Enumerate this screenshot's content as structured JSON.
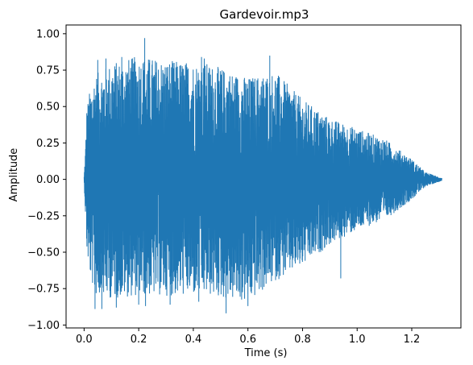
{
  "chart_data": {
    "type": "line",
    "title": "Gardevoir.mp3",
    "xlabel": "Time (s)",
    "ylabel": "Amplitude",
    "xlim": [
      -0.066,
      1.38
    ],
    "ylim": [
      -1.02,
      1.06
    ],
    "xticks": [
      0.0,
      0.2,
      0.4,
      0.6,
      0.8,
      1.0,
      1.2
    ],
    "xtick_labels": [
      "0.0",
      "0.2",
      "0.4",
      "0.6",
      "0.8",
      "1.0",
      "1.2"
    ],
    "yticks": [
      -1.0,
      -0.75,
      -0.5,
      -0.25,
      0.0,
      0.25,
      0.5,
      0.75,
      1.0
    ],
    "ytick_labels": [
      "−1.00",
      "−0.75",
      "−0.50",
      "−0.25",
      "0.00",
      "0.25",
      "0.50",
      "0.75",
      "1.00"
    ],
    "grid": false,
    "series": [
      {
        "color": "#1f77b4",
        "duration": 1.31,
        "envelope": {
          "t": [
            0.0,
            0.005,
            0.01,
            0.02,
            0.04,
            0.1,
            0.2,
            0.3,
            0.45,
            0.6,
            0.7,
            0.8,
            0.9,
            1.0,
            1.1,
            1.2,
            1.25,
            1.31
          ],
          "max": [
            0.02,
            0.22,
            0.5,
            0.6,
            0.72,
            0.8,
            0.85,
            0.82,
            0.8,
            0.7,
            0.74,
            0.55,
            0.42,
            0.35,
            0.28,
            0.14,
            0.05,
            0.01
          ],
          "min": [
            -0.02,
            -0.25,
            -0.5,
            -0.65,
            -0.8,
            -0.82,
            -0.8,
            -0.8,
            -0.8,
            -0.85,
            -0.7,
            -0.6,
            -0.45,
            -0.35,
            -0.28,
            -0.14,
            -0.05,
            -0.01
          ]
        },
        "peaks": [
          {
            "t": 0.05,
            "v": 0.82
          },
          {
            "t": 0.08,
            "v": 0.83
          },
          {
            "t": 0.138,
            "v": 0.84
          },
          {
            "t": 0.222,
            "v": 0.97
          },
          {
            "t": 0.43,
            "v": 0.84
          },
          {
            "t": 0.44,
            "v": 0.83
          },
          {
            "t": 0.68,
            "v": 0.85
          },
          {
            "t": 0.04,
            "v": -0.89
          },
          {
            "t": 0.065,
            "v": -0.89
          },
          {
            "t": 0.118,
            "v": -0.88
          },
          {
            "t": 0.2,
            "v": -0.86
          },
          {
            "t": 0.225,
            "v": -0.87
          },
          {
            "t": 0.315,
            "v": -0.86
          },
          {
            "t": 0.42,
            "v": -0.84
          },
          {
            "t": 0.52,
            "v": -0.92
          },
          {
            "t": 0.6,
            "v": -0.87
          },
          {
            "t": 0.94,
            "v": -0.68
          }
        ]
      }
    ]
  }
}
